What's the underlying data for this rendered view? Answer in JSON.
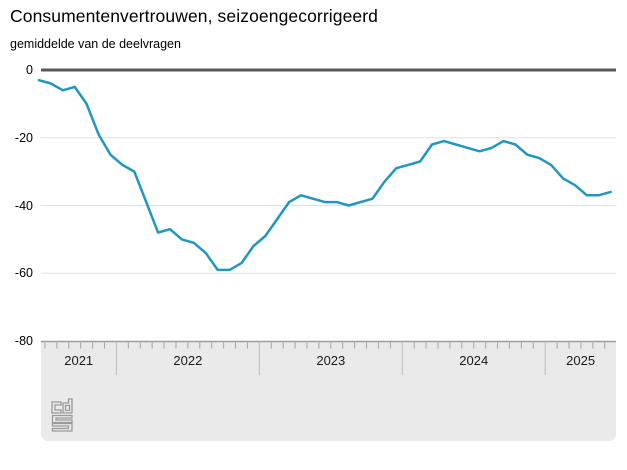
{
  "header": {
    "title": "Consumentenvertrouwen, seizoengecorrigeerd",
    "subtitle": "gemiddelde van de deelvragen"
  },
  "chart_data": {
    "type": "line",
    "title": "Consumentenvertrouwen, seizoengecorrigeerd",
    "subtitle": "gemiddelde van de deelvragen",
    "ylim": [
      -80,
      0
    ],
    "y_ticks": [
      "0",
      "-20",
      "-40",
      "-60",
      "-80"
    ],
    "grid": "horizontal, light gray, zero-line emphasized dark",
    "legend": "none",
    "x_year_labels": [
      "2021",
      "2022",
      "2023",
      "2024",
      "2025"
    ],
    "months_per_year_segment": [
      7,
      12,
      12,
      12,
      6
    ],
    "series": [
      {
        "name": "consumentenvertrouwen",
        "x": [
          "2021-06",
          "2021-07",
          "2021-08",
          "2021-09",
          "2021-10",
          "2021-11",
          "2021-12",
          "2022-01",
          "2022-02",
          "2022-03",
          "2022-04",
          "2022-05",
          "2022-06",
          "2022-07",
          "2022-08",
          "2022-09",
          "2022-10",
          "2022-11",
          "2022-12",
          "2023-01",
          "2023-02",
          "2023-03",
          "2023-04",
          "2023-05",
          "2023-06",
          "2023-07",
          "2023-08",
          "2023-09",
          "2023-10",
          "2023-11",
          "2023-12",
          "2024-01",
          "2024-02",
          "2024-03",
          "2024-04",
          "2024-05",
          "2024-06",
          "2024-07",
          "2024-08",
          "2024-09",
          "2024-10",
          "2024-11",
          "2024-12",
          "2025-01",
          "2025-02",
          "2025-03",
          "2025-04",
          "2025-05",
          "2025-06"
        ],
        "values": [
          -3,
          -4,
          -6,
          -5,
          -10,
          -19,
          -25,
          -28,
          -30,
          -39,
          -48,
          -47,
          -50,
          -51,
          -54,
          -59,
          -59,
          -57,
          -52,
          -49,
          -44,
          -39,
          -37,
          -38,
          -39,
          -39,
          -40,
          -39,
          -38,
          -33,
          -29,
          -28,
          -27,
          -22,
          -21,
          -22,
          -23,
          -24,
          -23,
          -21,
          -22,
          -25,
          -26,
          -28,
          -32,
          -34,
          -37,
          -37,
          -36
        ]
      }
    ]
  },
  "footer": {
    "logo": "cbs-logo"
  },
  "colors": {
    "line": "#2196be",
    "zero_line": "#58585a",
    "gridline": "#e0e0e0",
    "axis_panel_fill": "#eaeaea",
    "axis_panel_border": "#9d9d9d",
    "month_tick": "#a3a3a3",
    "year_separator": "#bdbdbd",
    "logo_gray": "#9a9a9a",
    "text": "#000000"
  }
}
